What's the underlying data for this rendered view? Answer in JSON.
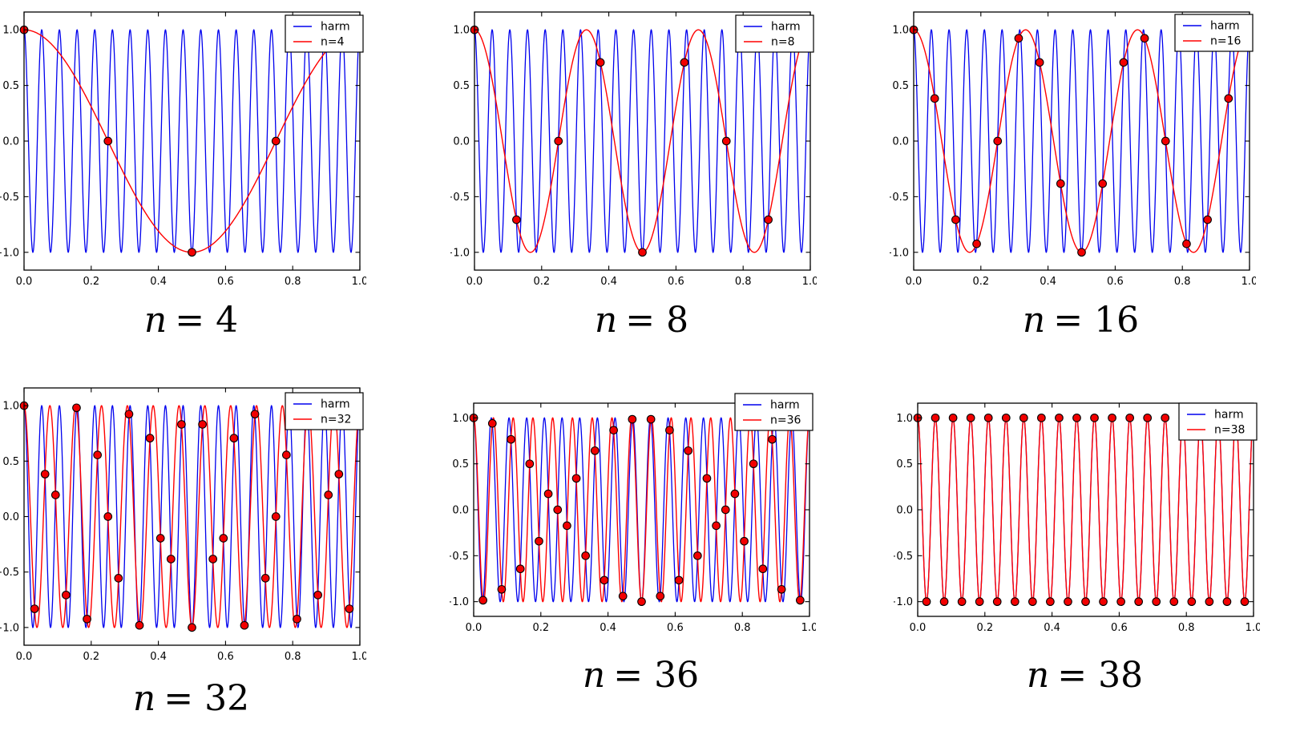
{
  "figure": {
    "title": "",
    "colors": {
      "harm": "#0000ee",
      "alias": "#ff0000",
      "marker_fill": "#f20000",
      "marker_edge": "#000000",
      "axis": "#000000",
      "background": "#ffffff",
      "legend_bg": "#ffffff",
      "legend_border": "#000000"
    },
    "axes": {
      "xlim": [
        0,
        1
      ],
      "ylim": [
        -1.16,
        1.16
      ],
      "xticks": {
        "values": [
          0,
          0.2,
          0.4,
          0.6,
          0.8,
          1.0
        ],
        "labels": [
          "0.0",
          "0.2",
          "0.4",
          "0.6",
          "0.8",
          "1.0"
        ]
      },
      "yticks": {
        "values": [
          1.0,
          0.5,
          0.0,
          -0.5,
          -1.0
        ],
        "labels": [
          "1.0",
          "0.5",
          "0.0",
          "−0.5",
          "−1.0"
        ]
      },
      "grid": false
    },
    "harm_frequency": 19,
    "harm_function": "cos(2*pi*19*x)"
  },
  "chart_data": [
    {
      "type": "line",
      "caption_var": "n",
      "caption_value": "= 4",
      "n_samples": 4,
      "harm_frequency": 19,
      "alias_frequency": 1,
      "legend": [
        {
          "label": "harm",
          "color": "#0000ee"
        },
        {
          "label": "n=4",
          "color": "#ff0000"
        }
      ],
      "legend_position": "upper right",
      "samples_t": [
        0,
        0.25,
        0.5,
        0.75
      ],
      "samples_y": [
        1.0,
        0.0,
        -1.0,
        0.0
      ]
    },
    {
      "type": "line",
      "caption_var": "n",
      "caption_value": "= 8",
      "n_samples": 8,
      "harm_frequency": 19,
      "alias_frequency": 3,
      "legend": [
        {
          "label": "harm",
          "color": "#0000ee"
        },
        {
          "label": "n=8",
          "color": "#ff0000"
        }
      ],
      "legend_position": "upper right",
      "samples_t": [
        0,
        0.125,
        0.25,
        0.375,
        0.5,
        0.625,
        0.75,
        0.875
      ],
      "samples_y": [
        1.0,
        -0.7071,
        0.0,
        0.7071,
        -1.0,
        0.7071,
        0.0,
        -0.7071
      ]
    },
    {
      "type": "line",
      "caption_var": "n",
      "caption_value": "= 16",
      "n_samples": 16,
      "harm_frequency": 19,
      "alias_frequency": 3,
      "legend": [
        {
          "label": "harm",
          "color": "#0000ee"
        },
        {
          "label": "n=16",
          "color": "#ff0000"
        }
      ],
      "legend_position": "upper right",
      "samples_t": [
        0,
        0.0625,
        0.125,
        0.1875,
        0.25,
        0.3125,
        0.375,
        0.4375,
        0.5,
        0.5625,
        0.625,
        0.6875,
        0.75,
        0.8125,
        0.875,
        0.9375
      ],
      "samples_y": [
        1.0,
        0.3827,
        -0.7071,
        -0.9239,
        0.0,
        0.9239,
        0.7071,
        -0.3827,
        -1.0,
        -0.3827,
        0.7071,
        0.9239,
        0.0,
        -0.9239,
        -0.7071,
        0.3827
      ]
    },
    {
      "type": "line",
      "caption_var": "n",
      "caption_value": "= 32",
      "n_samples": 32,
      "harm_frequency": 19,
      "alias_frequency": 13,
      "legend": [
        {
          "label": "harm",
          "color": "#0000ee"
        },
        {
          "label": "n=32",
          "color": "#ff0000"
        }
      ],
      "legend_position": "upper right",
      "samples_t": [
        0,
        0.03125,
        0.0625,
        0.09375,
        0.125,
        0.15625,
        0.1875,
        0.21875,
        0.25,
        0.28125,
        0.3125,
        0.34375,
        0.375,
        0.40625,
        0.4375,
        0.46875,
        0.5,
        0.53125,
        0.5625,
        0.59375,
        0.625,
        0.65625,
        0.6875,
        0.71875,
        0.75,
        0.78125,
        0.8125,
        0.84375,
        0.875,
        0.90625,
        0.9375,
        0.96875
      ],
      "samples_y": [
        1.0,
        -0.8315,
        0.3827,
        0.1951,
        -0.7071,
        0.9808,
        -0.9239,
        0.5556,
        0.0,
        -0.5556,
        0.9239,
        -0.9808,
        0.7071,
        -0.1951,
        -0.3827,
        0.8315,
        -1.0,
        0.8315,
        -0.3827,
        -0.1951,
        0.7071,
        -0.9808,
        0.9239,
        -0.5556,
        0.0,
        0.5556,
        -0.9239,
        0.9808,
        -0.7071,
        0.1951,
        0.3827,
        -0.8315
      ]
    },
    {
      "type": "line",
      "caption_var": "n",
      "caption_value": "= 36",
      "n_samples": 36,
      "harm_frequency": 19,
      "alias_frequency": 17,
      "legend": [
        {
          "label": "harm",
          "color": "#0000ee"
        },
        {
          "label": "n=36",
          "color": "#ff0000"
        }
      ],
      "legend_position": "upper right",
      "samples_t": [
        0,
        0.0278,
        0.0556,
        0.0833,
        0.1111,
        0.1389,
        0.1667,
        0.1944,
        0.2222,
        0.25,
        0.2778,
        0.3056,
        0.3333,
        0.3611,
        0.3889,
        0.4167,
        0.4444,
        0.4722,
        0.5,
        0.5278,
        0.5556,
        0.5833,
        0.6111,
        0.6389,
        0.6667,
        0.6944,
        0.7222,
        0.75,
        0.7778,
        0.8056,
        0.8333,
        0.8611,
        0.8889,
        0.9167,
        0.9444,
        0.9722
      ],
      "samples_y": [
        1.0,
        -0.9848,
        0.9397,
        -0.866,
        0.766,
        -0.6428,
        0.5,
        -0.342,
        0.1736,
        0.0,
        -0.1736,
        0.342,
        -0.5,
        0.6428,
        -0.766,
        0.866,
        -0.9397,
        0.9848,
        -1.0,
        0.9848,
        -0.9397,
        0.866,
        -0.766,
        0.6428,
        -0.5,
        0.342,
        -0.1736,
        0.0,
        0.1736,
        -0.342,
        0.5,
        -0.6428,
        0.766,
        -0.866,
        0.9397,
        -0.9848
      ]
    },
    {
      "type": "line",
      "caption_var": "n",
      "caption_value": "= 38",
      "n_samples": 38,
      "harm_frequency": 19,
      "alias_frequency": 19,
      "legend": [
        {
          "label": "harm",
          "color": "#0000ee"
        },
        {
          "label": "n=38",
          "color": "#ff0000"
        }
      ],
      "legend_position": "upper right",
      "samples_t": [
        0,
        0.0263,
        0.0526,
        0.0789,
        0.1053,
        0.1316,
        0.1579,
        0.1842,
        0.2105,
        0.2368,
        0.2632,
        0.2895,
        0.3158,
        0.3421,
        0.3684,
        0.3947,
        0.4211,
        0.4474,
        0.4737,
        0.5,
        0.5263,
        0.5526,
        0.5789,
        0.6053,
        0.6316,
        0.6579,
        0.6842,
        0.7105,
        0.7368,
        0.7632,
        0.7895,
        0.8158,
        0.8421,
        0.8684,
        0.8947,
        0.9211,
        0.9474,
        0.9737
      ],
      "samples_y": [
        1,
        -1,
        1,
        -1,
        1,
        -1,
        1,
        -1,
        1,
        -1,
        1,
        -1,
        1,
        -1,
        1,
        -1,
        1,
        -1,
        1,
        -1,
        1,
        -1,
        1,
        -1,
        1,
        -1,
        1,
        -1,
        1,
        -1,
        1,
        -1,
        1,
        -1,
        1,
        -1,
        1,
        -1
      ]
    }
  ]
}
